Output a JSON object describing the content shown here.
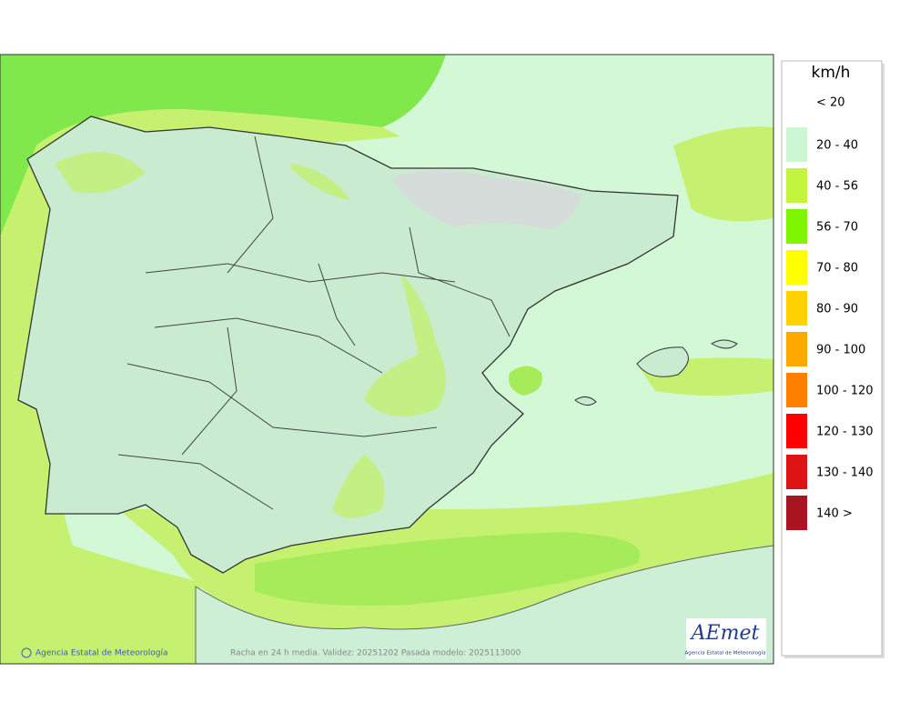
{
  "map": {
    "legend": {
      "title": "km/h",
      "items": [
        {
          "label": "< 20",
          "color": "#ffffff"
        },
        {
          "label": "20 - 40",
          "color": "#ccf7d2"
        },
        {
          "label": "40 - 56",
          "color": "#c3f43e"
        },
        {
          "label": "56 - 70",
          "color": "#7ef600"
        },
        {
          "label": "70 - 80",
          "color": "#ffff00"
        },
        {
          "label": "80 - 90",
          "color": "#ffd200"
        },
        {
          "label": "90 - 100",
          "color": "#ffa800"
        },
        {
          "label": "100 - 120",
          "color": "#ff8000"
        },
        {
          "label": "120 - 130",
          "color": "#ff0000"
        },
        {
          "label": "130 - 140",
          "color": "#dc1414"
        },
        {
          "label": "140 >",
          "color": "#aa1420"
        }
      ]
    },
    "credit": "Agencia Estatal de Meteorología",
    "caption": "Racha en 24 h media. Validez: 20251202 Pasada modelo: 2025113000",
    "logo": {
      "name": "AEmet",
      "subtitle": "Agencia Estatal de Meteorología"
    }
  }
}
